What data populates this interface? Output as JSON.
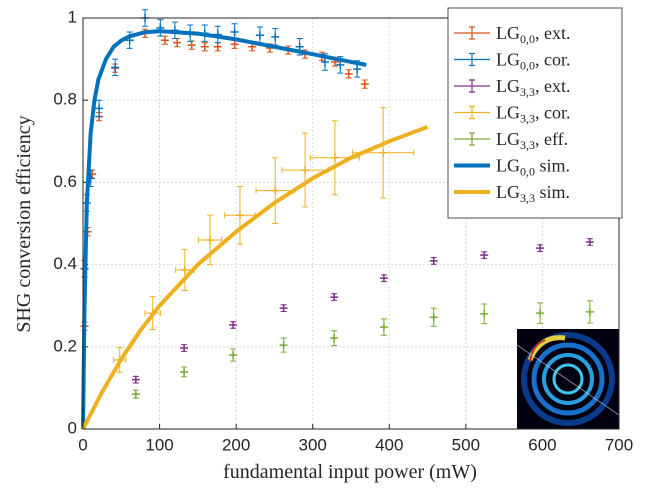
{
  "chart_data": {
    "type": "errorbar",
    "xlabel": "fundamental input power (mW)",
    "ylabel": "SHG conversion efficiency",
    "xlim": [
      0,
      700
    ],
    "xticks": [
      0,
      100,
      200,
      300,
      400,
      500,
      600,
      700
    ],
    "ylim": [
      0,
      1
    ],
    "yticks": [
      0,
      0.2,
      0.4,
      0.6,
      0.8,
      1
    ],
    "grid": true,
    "legend": "upper right",
    "series": [
      {
        "name": {
          "base": "LG",
          "sub": "0,0",
          "rest": ", ext."
        },
        "style": "errorbar",
        "color": "#d95319",
        "x": [
          2,
          6,
          12,
          21,
          42,
          81,
          107,
          123,
          142,
          159,
          176,
          198,
          221,
          244,
          268,
          290,
          312,
          329,
          347,
          368
        ],
        "values": [
          0.25,
          0.48,
          0.62,
          0.76,
          0.878,
          0.963,
          0.946,
          0.94,
          0.934,
          0.93,
          0.93,
          0.936,
          0.93,
          0.927,
          0.922,
          0.912,
          0.907,
          0.893,
          0.864,
          0.839
        ],
        "yerr": [
          0.01,
          0.01,
          0.01,
          0.01,
          0.01,
          0.01,
          0.01,
          0.01,
          0.01,
          0.01,
          0.01,
          0.01,
          0.01,
          0.01,
          0.01,
          0.01,
          0.01,
          0.01,
          0.01,
          0.01
        ]
      },
      {
        "name": {
          "base": "LG",
          "sub": "0,0",
          "rest": ", cor."
        },
        "style": "errorbar",
        "color": "#0072bd",
        "x": [
          2,
          5,
          10,
          21,
          42,
          61,
          81,
          101,
          120,
          140,
          159,
          176,
          198,
          231,
          251,
          283,
          316,
          336,
          358
        ],
        "values": [
          0.39,
          0.55,
          0.61,
          0.78,
          0.88,
          0.946,
          1.0,
          0.976,
          0.97,
          0.963,
          0.963,
          0.96,
          0.966,
          0.958,
          0.954,
          0.93,
          0.893,
          0.886,
          0.876
        ],
        "yerr": [
          0.02,
          0.02,
          0.02,
          0.02,
          0.02,
          0.02,
          0.02,
          0.02,
          0.02,
          0.02,
          0.02,
          0.02,
          0.02,
          0.02,
          0.02,
          0.02,
          0.02,
          0.02,
          0.02
        ]
      },
      {
        "name": {
          "base": "LG",
          "sub": "3,3",
          "rest": ", ext."
        },
        "style": "errorbar",
        "color": "#7e2f8e",
        "x": [
          69,
          132,
          196,
          262,
          328,
          393,
          458,
          524,
          597,
          662
        ],
        "values": [
          0.12,
          0.197,
          0.253,
          0.294,
          0.321,
          0.367,
          0.409,
          0.423,
          0.44,
          0.455
        ],
        "yerr": [
          0.008,
          0.008,
          0.008,
          0.008,
          0.008,
          0.008,
          0.008,
          0.008,
          0.008,
          0.008
        ]
      },
      {
        "name": {
          "base": "LG",
          "sub": "3,3",
          "rest": ", cor."
        },
        "style": "errorbar",
        "color": "#edb120",
        "x": [
          48,
          91,
          133,
          166,
          205,
          251,
          290,
          329,
          392
        ],
        "values": [
          0.168,
          0.282,
          0.387,
          0.46,
          0.52,
          0.58,
          0.63,
          0.66,
          0.672
        ],
        "yerr": [
          0.03,
          0.04,
          0.05,
          0.06,
          0.07,
          0.08,
          0.09,
          0.09,
          0.11
        ],
        "xerr": [
          8,
          10,
          12,
          15,
          20,
          25,
          30,
          32,
          40
        ]
      },
      {
        "name": {
          "base": "LG",
          "sub": "3,3",
          "rest": ", eff."
        },
        "style": "errorbar",
        "color": "#77ac30",
        "x": [
          69,
          132,
          196,
          262,
          328,
          393,
          458,
          524,
          597,
          662
        ],
        "values": [
          0.085,
          0.139,
          0.18,
          0.204,
          0.221,
          0.248,
          0.272,
          0.28,
          0.282,
          0.285
        ],
        "yerr": [
          0.01,
          0.012,
          0.015,
          0.017,
          0.018,
          0.02,
          0.022,
          0.024,
          0.025,
          0.027
        ]
      },
      {
        "name": {
          "base": "LG",
          "sub": "0,0",
          "rest": " sim."
        },
        "style": "line",
        "color": "#0072bd",
        "x": [
          0,
          2,
          5,
          10,
          15,
          20,
          30,
          40,
          50,
          60,
          80,
          100,
          150,
          200,
          250,
          300,
          350,
          370
        ],
        "values": [
          0,
          0.3,
          0.55,
          0.72,
          0.8,
          0.85,
          0.9,
          0.93,
          0.945,
          0.955,
          0.965,
          0.968,
          0.962,
          0.948,
          0.93,
          0.912,
          0.893,
          0.886
        ]
      },
      {
        "name": {
          "base": "LG",
          "sub": "3,3",
          "rest": " sim."
        },
        "style": "line",
        "color": "#edb120",
        "x": [
          0,
          25,
          50,
          75,
          100,
          150,
          200,
          250,
          300,
          350,
          400,
          450
        ],
        "values": [
          0,
          0.09,
          0.17,
          0.24,
          0.3,
          0.4,
          0.48,
          0.55,
          0.61,
          0.66,
          0.7,
          0.735
        ]
      }
    ]
  }
}
